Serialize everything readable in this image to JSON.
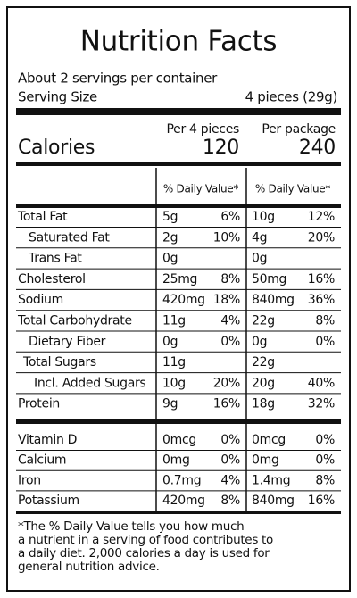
{
  "title": "Nutrition Facts",
  "servings": "About 2 servings per container",
  "serving_size": {
    "label": "Serving Size",
    "value": "4 pieces (29g)"
  },
  "columns": [
    "Per 4 pieces",
    "Per package"
  ],
  "calories": {
    "label": "Calories",
    "values": [
      "120",
      "240"
    ]
  },
  "daily_value_header": [
    "% Daily Value*",
    "% Daily Value*"
  ],
  "nutrients": [
    {
      "name": "Total Fat",
      "cells": [
        "5g",
        "6%",
        "10g",
        "12%"
      ]
    },
    {
      "name": "Saturated Fat",
      "cells": [
        "2g",
        "10%",
        "4g",
        "20%"
      ]
    },
    {
      "name": "Trans Fat",
      "cells": [
        "0g",
        "0g"
      ]
    },
    {
      "name": "Cholesterol",
      "cells": [
        "25mg",
        "8%",
        "50mg",
        "16%"
      ]
    },
    {
      "name": "Sodium",
      "cells": [
        "420mg",
        "18%",
        "840mg",
        "36%"
      ]
    },
    {
      "name": "Total Carbohydrate",
      "cells": [
        "11g",
        "4%",
        "22g",
        "8%"
      ]
    },
    {
      "name": "Dietary Fiber",
      "cells": [
        "0g",
        "0%",
        "0g",
        "0%"
      ]
    },
    {
      "name": "Total Sugars",
      "cells": [
        "11g",
        "22g"
      ]
    },
    {
      "name": "Incl. Added Sugars",
      "cells": [
        "10g",
        "20%",
        "20g",
        "40%"
      ]
    },
    {
      "name": "Protein",
      "cells": [
        "9g",
        "16%",
        "18g",
        "32%"
      ]
    }
  ],
  "vitamins": [
    {
      "name": "Vitamin D",
      "cells": [
        "0mcg",
        "0%",
        "0mcg",
        "0%"
      ]
    },
    {
      "name": "Calcium",
      "cells": [
        "0mg",
        "0%",
        "0mg",
        "0%"
      ]
    },
    {
      "name": "Iron",
      "cells": [
        "0.7mg",
        "4%",
        "1.4mg",
        "8%"
      ]
    },
    {
      "name": "Potassium",
      "cells": [
        "420mg",
        "8%",
        "840mg",
        "16%"
      ]
    }
  ],
  "footnote": [
    "*The % Daily Value tells you how much",
    "a nutrient in a serving of food contributes to",
    "a daily diet. 2,000 calories a day is used for",
    "general nutrition advice."
  ]
}
